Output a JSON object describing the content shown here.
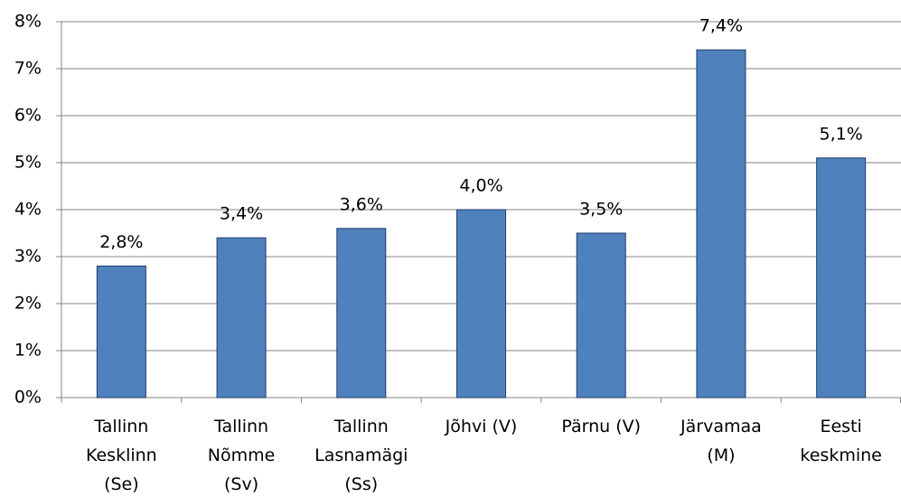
{
  "chart_data": {
    "type": "bar",
    "categories": [
      "Tallinn\nKesklinn\n(Se)",
      "Tallinn\nNõmme\n(Sv)",
      "Tallinn\nLasnamägi\n(Ss)",
      "Jõhvi (V)",
      "Pärnu (V)",
      "Järvamaa\n(M)",
      "Eesti\nkeskmine"
    ],
    "values": [
      2.8,
      3.4,
      3.6,
      4.0,
      3.5,
      7.4,
      5.1
    ],
    "value_labels": [
      "2,8%",
      "3,4%",
      "3,6%",
      "4,0%",
      "3,5%",
      "7,4%",
      "5,1%"
    ],
    "color": "#4f81bd",
    "ylim": [
      0,
      8
    ],
    "yticks": [
      {
        "value": 0,
        "label": "0%"
      },
      {
        "value": 1,
        "label": "1%"
      },
      {
        "value": 2,
        "label": "2%"
      },
      {
        "value": 3,
        "label": "3%"
      },
      {
        "value": 4,
        "label": "4%"
      },
      {
        "value": 5,
        "label": "5%"
      },
      {
        "value": 6,
        "label": "6%"
      },
      {
        "value": 7,
        "label": "7%"
      },
      {
        "value": 8,
        "label": "8%"
      }
    ],
    "grid": true
  }
}
